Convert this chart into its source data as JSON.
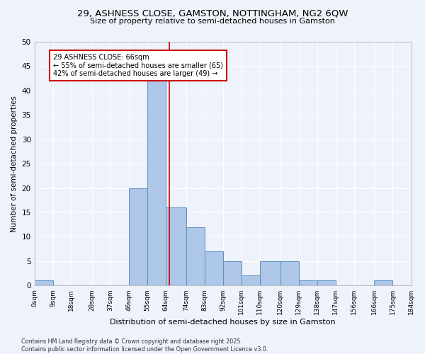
{
  "title_line1": "29, ASHNESS CLOSE, GAMSTON, NOTTINGHAM, NG2 6QW",
  "title_line2": "Size of property relative to semi-detached houses in Gamston",
  "xlabel": "Distribution of semi-detached houses by size in Gamston",
  "ylabel": "Number of semi-detached properties",
  "bin_edges": [
    0,
    9,
    18,
    28,
    37,
    46,
    55,
    64,
    74,
    83,
    92,
    101,
    110,
    120,
    129,
    138,
    147,
    156,
    166,
    175,
    184
  ],
  "bar_heights": [
    1,
    0,
    0,
    0,
    0,
    20,
    42,
    16,
    12,
    7,
    5,
    2,
    5,
    5,
    1,
    1,
    0,
    0,
    1,
    0
  ],
  "bar_color": "#aec6e8",
  "bar_edge_color": "#5a8fc0",
  "property_size": 66,
  "vline_color": "#cc0000",
  "annotation_title": "29 ASHNESS CLOSE: 66sqm",
  "annotation_line1": "← 55% of semi-detached houses are smaller (65)",
  "annotation_line2": "42% of semi-detached houses are larger (49) →",
  "annotation_box_color": "#cc0000",
  "annotation_bg": "#ffffff",
  "ylim": [
    0,
    50
  ],
  "yticks": [
    0,
    5,
    10,
    15,
    20,
    25,
    30,
    35,
    40,
    45,
    50
  ],
  "tick_labels": [
    "0sqm",
    "9sqm",
    "18sqm",
    "28sqm",
    "37sqm",
    "46sqm",
    "55sqm",
    "64sqm",
    "74sqm",
    "83sqm",
    "92sqm",
    "101sqm",
    "110sqm",
    "120sqm",
    "129sqm",
    "138sqm",
    "147sqm",
    "156sqm",
    "166sqm",
    "175sqm",
    "184sqm"
  ],
  "footnote_line1": "Contains HM Land Registry data © Crown copyright and database right 2025.",
  "footnote_line2": "Contains public sector information licensed under the Open Government Licence v3.0.",
  "background_color": "#eef2fa",
  "grid_color": "#ffffff"
}
